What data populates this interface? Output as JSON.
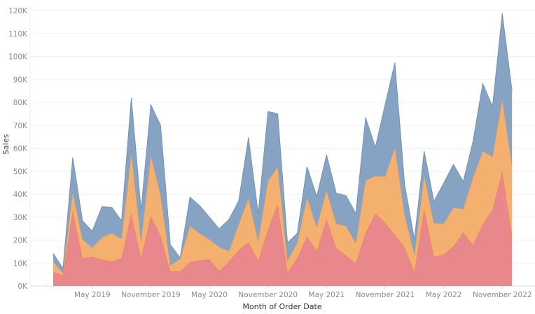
{
  "chart_data": {
    "type": "area",
    "stacked": true,
    "xlabel": "Month of Order Date",
    "ylabel": "Sales",
    "ylim": [
      0,
      120000
    ],
    "grid": true,
    "y_ticks": [
      {
        "value": 0,
        "label": "0K"
      },
      {
        "value": 10000,
        "label": "10K"
      },
      {
        "value": 20000,
        "label": "20K"
      },
      {
        "value": 30000,
        "label": "30K"
      },
      {
        "value": 40000,
        "label": "40K"
      },
      {
        "value": 50000,
        "label": "50K"
      },
      {
        "value": 60000,
        "label": "60K"
      },
      {
        "value": 70000,
        "label": "70K"
      },
      {
        "value": 80000,
        "label": "80K"
      },
      {
        "value": 90000,
        "label": "90K"
      },
      {
        "value": 100000,
        "label": "100K"
      },
      {
        "value": 110000,
        "label": "110K"
      },
      {
        "value": 120000,
        "label": "120K"
      }
    ],
    "x_ticks": [
      {
        "value": "2019-05",
        "label": "May 2019"
      },
      {
        "value": "2019-11",
        "label": "November 2019"
      },
      {
        "value": "2020-05",
        "label": "May 2020"
      },
      {
        "value": "2020-11",
        "label": "November 2020"
      },
      {
        "value": "2021-05",
        "label": "May 2021"
      },
      {
        "value": "2021-11",
        "label": "November 2021"
      },
      {
        "value": "2022-05",
        "label": "May 2022"
      },
      {
        "value": "2022-11",
        "label": "November 2022"
      }
    ],
    "x": [
      "2019-01",
      "2019-02",
      "2019-03",
      "2019-04",
      "2019-05",
      "2019-06",
      "2019-07",
      "2019-08",
      "2019-09",
      "2019-10",
      "2019-11",
      "2019-12",
      "2020-01",
      "2020-02",
      "2020-03",
      "2020-04",
      "2020-05",
      "2020-06",
      "2020-07",
      "2020-08",
      "2020-09",
      "2020-10",
      "2020-11",
      "2020-12",
      "2021-01",
      "2021-02",
      "2021-03",
      "2021-04",
      "2021-05",
      "2021-06",
      "2021-07",
      "2021-08",
      "2021-09",
      "2021-10",
      "2021-11",
      "2021-12",
      "2022-01",
      "2022-02",
      "2022-03",
      "2022-04",
      "2022-05",
      "2022-06",
      "2022-07",
      "2022-08",
      "2022-09",
      "2022-10",
      "2022-11",
      "2022-12"
    ],
    "series": [
      {
        "color": "#e8878c",
        "line": "#f07a4e",
        "values": [
          6000,
          4700,
          32600,
          12100,
          12700,
          11400,
          10700,
          12100,
          31500,
          12000,
          30500,
          21800,
          6400,
          6300,
          10400,
          11100,
          11600,
          6500,
          10600,
          15700,
          19000,
          11100,
          24400,
          35600,
          6000,
          12100,
          21600,
          15200,
          29000,
          16500,
          13200,
          9800,
          23000,
          31500,
          27500,
          22300,
          16700,
          6000,
          33600,
          12700,
          13700,
          17200,
          23400,
          17800,
          26900,
          33100,
          49900,
          21800
        ]
      },
      {
        "color": "#f4b06e",
        "line": "#e89a58",
        "values": [
          4600,
          900,
          8400,
          8200,
          4000,
          9900,
          12300,
          8500,
          26500,
          7500,
          26500,
          17900,
          2600,
          5500,
          15700,
          11800,
          8700,
          10500,
          4600,
          11200,
          19200,
          8500,
          21400,
          16400,
          5100,
          6700,
          17100,
          10500,
          12700,
          10600,
          12900,
          9000,
          23000,
          16400,
          20200,
          38100,
          14300,
          7700,
          14600,
          14700,
          13500,
          16900,
          10200,
          29300,
          31900,
          23200,
          31600,
          30600
        ]
      },
      {
        "color": "#86a3c4",
        "line": "#6f8fb5",
        "values": [
          3600,
          2000,
          15000,
          8100,
          7200,
          13300,
          11300,
          7800,
          24000,
          13500,
          22000,
          30300,
          9000,
          500,
          12600,
          12100,
          9700,
          7900,
          13800,
          10200,
          26500,
          11900,
          30200,
          23000,
          7700,
          4200,
          13300,
          13300,
          15500,
          13300,
          13300,
          12800,
          27400,
          12500,
          31300,
          36900,
          13300,
          6600,
          10600,
          9500,
          17600,
          18900,
          11900,
          15900,
          29400,
          21900,
          37300,
          32700
        ]
      }
    ]
  }
}
